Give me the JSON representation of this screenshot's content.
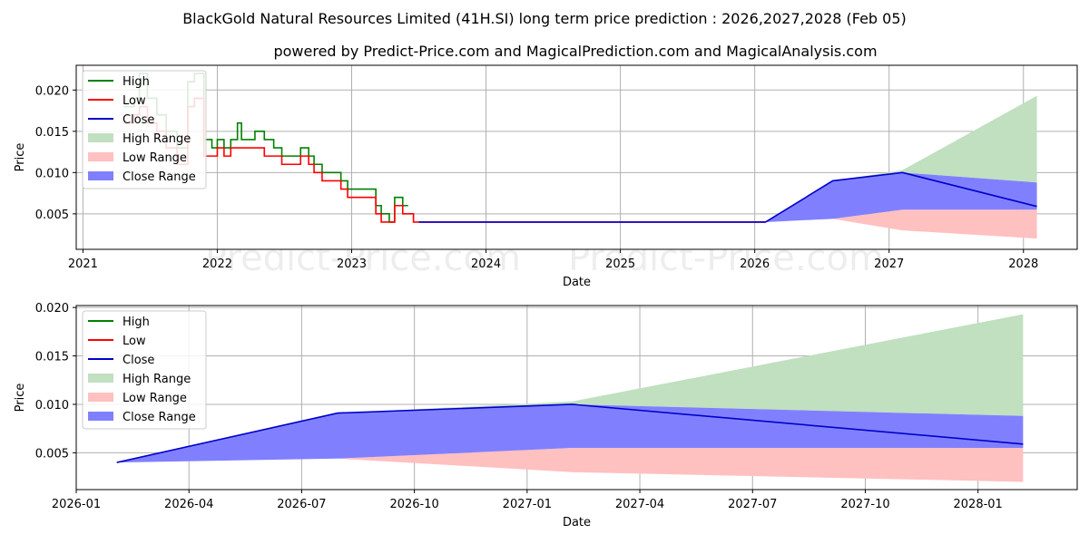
{
  "figure": {
    "title": "BlackGold Natural Resources Limited (41H.SI) long term price prediction : 2026,2027,2028 (Feb 05)",
    "subtitle": "powered by Predict-Price.com and MagicalPrediction.com and MagicalAnalysis.com",
    "watermark": "Predict-Price.com",
    "colors": {
      "high": "#008000",
      "low": "#ff0000",
      "close": "#0000cc",
      "high_range": "#c0e0c0",
      "low_range": "#ffc0c0",
      "close_range": "#8080ff"
    }
  },
  "chart_data": [
    {
      "type": "line",
      "xlabel": "Date",
      "ylabel": "Price",
      "grid": true,
      "legend": "upper left",
      "legend_entries": [
        "High",
        "Low",
        "Close",
        "High Range",
        "Low Range",
        "Close Range"
      ],
      "xlim": [
        2020.95,
        2028.4
      ],
      "ylim": [
        0.0007,
        0.023
      ],
      "xticks": [
        2021,
        2022,
        2023,
        2024,
        2025,
        2026,
        2027,
        2028
      ],
      "xtick_labels": [
        "2021",
        "2022",
        "2023",
        "2024",
        "2025",
        "2026",
        "2027",
        "2028"
      ],
      "yticks": [
        0.005,
        0.01,
        0.015,
        0.02
      ],
      "ytick_labels": [
        "0.005",
        "0.010",
        "0.015",
        "0.020"
      ],
      "series": [
        {
          "name": "High",
          "x": [
            2021.3,
            2021.38,
            2021.42,
            2021.48,
            2021.55,
            2021.62,
            2021.7,
            2021.78,
            2021.83,
            2021.9,
            2021.96,
            2022.0,
            2022.05,
            2022.1,
            2022.15,
            2022.18,
            2022.22,
            2022.28,
            2022.35,
            2022.42,
            2022.48,
            2022.55,
            2022.62,
            2022.68,
            2022.72,
            2022.78,
            2022.85,
            2022.92,
            2022.97,
            2023.02,
            2023.08,
            2023.12,
            2023.18,
            2023.22,
            2023.28,
            2023.32,
            2023.38,
            2023.42
          ],
          "values": [
            0.018,
            0.019,
            0.022,
            0.019,
            0.017,
            0.015,
            0.013,
            0.021,
            0.022,
            0.014,
            0.013,
            0.014,
            0.013,
            0.014,
            0.016,
            0.014,
            0.014,
            0.015,
            0.014,
            0.013,
            0.012,
            0.012,
            0.013,
            0.012,
            0.011,
            0.01,
            0.01,
            0.009,
            0.008,
            0.008,
            0.008,
            0.008,
            0.006,
            0.005,
            0.004,
            0.007,
            0.006,
            0.006
          ]
        },
        {
          "name": "Low",
          "x": [
            2021.3,
            2021.38,
            2021.42,
            2021.48,
            2021.55,
            2021.62,
            2021.7,
            2021.78,
            2021.83,
            2021.9,
            2021.96,
            2022.0,
            2022.05,
            2022.1,
            2022.15,
            2022.18,
            2022.22,
            2022.28,
            2022.35,
            2022.42,
            2022.48,
            2022.55,
            2022.62,
            2022.68,
            2022.72,
            2022.78,
            2022.85,
            2022.92,
            2022.97,
            2023.02,
            2023.08,
            2023.12,
            2023.18,
            2023.22,
            2023.28,
            2023.32,
            2023.38,
            2023.42,
            2023.46,
            2023.5,
            2026.08
          ],
          "values": [
            0.016,
            0.017,
            0.018,
            0.016,
            0.015,
            0.013,
            0.011,
            0.018,
            0.019,
            0.012,
            0.012,
            0.013,
            0.012,
            0.013,
            0.013,
            0.013,
            0.013,
            0.013,
            0.012,
            0.012,
            0.011,
            0.011,
            0.012,
            0.011,
            0.01,
            0.009,
            0.009,
            0.008,
            0.007,
            0.007,
            0.007,
            0.007,
            0.005,
            0.004,
            0.004,
            0.006,
            0.005,
            0.005,
            0.004,
            0.004,
            0.004
          ]
        },
        {
          "name": "Close",
          "x": [
            2023.5,
            2026.08,
            2026.58,
            2027.1,
            2028.1
          ],
          "values": [
            0.004,
            0.004,
            0.009,
            0.01,
            0.0059
          ]
        },
        {
          "name": "High Range",
          "x": [
            2026.08,
            2026.58,
            2027.1,
            2028.1
          ],
          "upper": [
            0.004,
            0.009,
            0.0103,
            0.0193
          ],
          "lower": [
            0.004,
            0.009,
            0.01,
            0.0088
          ]
        },
        {
          "name": "Low Range",
          "x": [
            2026.08,
            2026.58,
            2027.1,
            2028.1
          ],
          "upper": [
            0.004,
            0.0044,
            0.0055,
            0.0055
          ],
          "lower": [
            0.004,
            0.0044,
            0.003,
            0.002
          ]
        },
        {
          "name": "Close Range",
          "x": [
            2026.08,
            2026.58,
            2027.1,
            2028.1
          ],
          "upper": [
            0.004,
            0.009,
            0.01,
            0.0088
          ],
          "lower": [
            0.004,
            0.0044,
            0.0055,
            0.0055
          ]
        }
      ]
    },
    {
      "type": "line",
      "xlabel": "Date",
      "ylabel": "Price",
      "grid": true,
      "legend": "upper left",
      "legend_entries": [
        "High",
        "Low",
        "Close",
        "High Range",
        "Low Range",
        "Close Range"
      ],
      "xlim": [
        2026.0,
        2028.22
      ],
      "ylim": [
        0.0012,
        0.0202
      ],
      "xticks": [
        2026.0,
        2026.25,
        2026.5,
        2026.75,
        2027.0,
        2027.25,
        2027.5,
        2027.75,
        2028.0
      ],
      "xtick_labels": [
        "2026-01",
        "2026-04",
        "2026-07",
        "2026-10",
        "2027-01",
        "2027-04",
        "2027-07",
        "2027-10",
        "2028-01"
      ],
      "yticks": [
        0.005,
        0.01,
        0.015,
        0.02
      ],
      "ytick_labels": [
        "0.005",
        "0.010",
        "0.015",
        "0.020"
      ],
      "series": [
        {
          "name": "Close",
          "x": [
            2026.09,
            2026.58,
            2027.1,
            2028.1
          ],
          "values": [
            0.004,
            0.0091,
            0.01,
            0.0059
          ]
        },
        {
          "name": "High Range",
          "x": [
            2026.09,
            2026.58,
            2027.1,
            2028.1
          ],
          "upper": [
            0.004,
            0.0091,
            0.0103,
            0.0193
          ],
          "lower": [
            0.004,
            0.0091,
            0.01,
            0.0088
          ]
        },
        {
          "name": "Low Range",
          "x": [
            2026.09,
            2026.58,
            2027.1,
            2028.1
          ],
          "upper": [
            0.004,
            0.0044,
            0.0055,
            0.0055
          ],
          "lower": [
            0.004,
            0.0044,
            0.003,
            0.002
          ]
        },
        {
          "name": "Close Range",
          "x": [
            2026.09,
            2026.58,
            2027.1,
            2028.1
          ],
          "upper": [
            0.004,
            0.0091,
            0.01,
            0.0088
          ],
          "lower": [
            0.004,
            0.0044,
            0.0055,
            0.0055
          ]
        }
      ]
    }
  ]
}
